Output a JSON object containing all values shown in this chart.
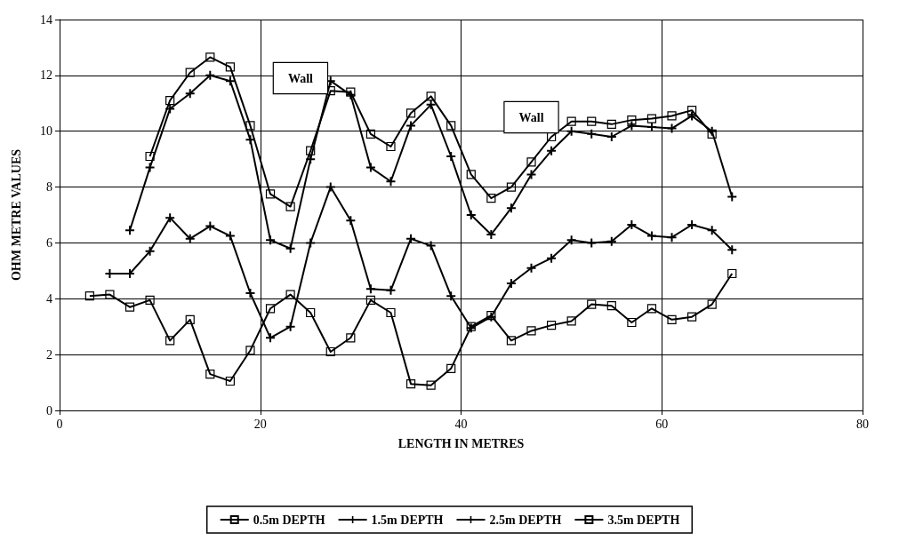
{
  "chart_data": {
    "type": "line",
    "xlabel": "LENGTH IN METRES",
    "ylabel": "OHM METRE VALUES",
    "xlim": [
      0,
      80
    ],
    "xticks": [
      0,
      20,
      40,
      60,
      80
    ],
    "ylim": [
      0,
      14
    ],
    "yticks": [
      0,
      2,
      4,
      6,
      8,
      10,
      12,
      14
    ],
    "grid": true,
    "legend": "bottom",
    "line_style": "solid",
    "annotations": [
      "Wall",
      "Wall"
    ],
    "series": [
      {
        "name": "0.5m DEPTH",
        "color": "#000000",
        "marker": "square",
        "x": [
          3,
          5,
          7,
          9,
          11,
          13,
          15,
          17,
          19,
          21,
          23,
          25,
          27,
          29,
          31,
          33,
          35,
          37,
          39,
          41,
          43,
          45,
          47,
          49,
          51,
          53,
          55,
          57,
          59,
          61,
          63,
          65,
          67
        ],
        "values": [
          4.1,
          4.15,
          3.7,
          3.95,
          2.5,
          3.25,
          1.3,
          1.05,
          2.15,
          3.65,
          4.15,
          3.5,
          2.1,
          2.6,
          3.95,
          3.5,
          0.95,
          0.9,
          1.5,
          3.0,
          3.4,
          2.5,
          2.85,
          3.05,
          3.2,
          3.8,
          3.75,
          3.15,
          3.65,
          3.25,
          3.35,
          3.8,
          4.9
        ]
      },
      {
        "name": "1.5m DEPTH",
        "color": "#000000",
        "marker": "cross",
        "x": [
          5,
          7,
          9,
          11,
          13,
          15,
          17,
          19,
          21,
          23,
          25,
          27,
          29,
          31,
          33,
          35,
          37,
          39,
          41,
          43,
          45,
          47,
          49,
          51,
          53,
          55,
          57,
          59,
          61,
          63,
          65,
          67
        ],
        "values": [
          4.9,
          4.9,
          5.7,
          6.9,
          6.15,
          6.6,
          6.25,
          4.2,
          2.6,
          3.0,
          6.0,
          8.0,
          6.8,
          4.35,
          4.3,
          6.15,
          5.9,
          4.1,
          2.95,
          3.35,
          4.55,
          5.1,
          5.45,
          6.1,
          6.0,
          6.05,
          6.65,
          6.25,
          6.2,
          6.65,
          6.45,
          5.75
        ]
      },
      {
        "name": "2.5m DEPTH",
        "color": "#000000",
        "marker": "cross",
        "x": [
          7,
          9,
          11,
          13,
          15,
          17,
          19,
          21,
          23,
          25,
          27,
          29,
          31,
          33,
          35,
          37,
          39,
          41,
          43,
          45,
          47,
          49,
          51,
          53,
          55,
          57,
          59,
          61,
          63,
          65,
          67
        ],
        "values": [
          6.45,
          8.7,
          10.8,
          11.35,
          12.0,
          11.8,
          9.7,
          6.1,
          5.8,
          9.0,
          11.8,
          11.3,
          8.7,
          8.2,
          10.2,
          10.95,
          9.1,
          7.0,
          6.3,
          7.25,
          8.45,
          9.3,
          10.0,
          9.9,
          9.8,
          10.2,
          10.15,
          10.1,
          10.55,
          10.0,
          7.65
        ]
      },
      {
        "name": "3.5m DEPTH",
        "color": "#000000",
        "marker": "square",
        "x": [
          9,
          11,
          13,
          15,
          17,
          19,
          21,
          23,
          25,
          27,
          29,
          31,
          33,
          35,
          37,
          39,
          41,
          43,
          45,
          47,
          49,
          51,
          53,
          55,
          57,
          59,
          61,
          63,
          65
        ],
        "values": [
          9.1,
          11.1,
          12.1,
          12.65,
          12.3,
          10.2,
          7.75,
          7.3,
          9.3,
          11.45,
          11.4,
          9.9,
          9.45,
          10.65,
          11.25,
          10.2,
          8.45,
          7.6,
          8.0,
          8.9,
          9.8,
          10.35,
          10.35,
          10.25,
          10.4,
          10.45,
          10.55,
          10.75,
          9.9
        ]
      }
    ]
  }
}
